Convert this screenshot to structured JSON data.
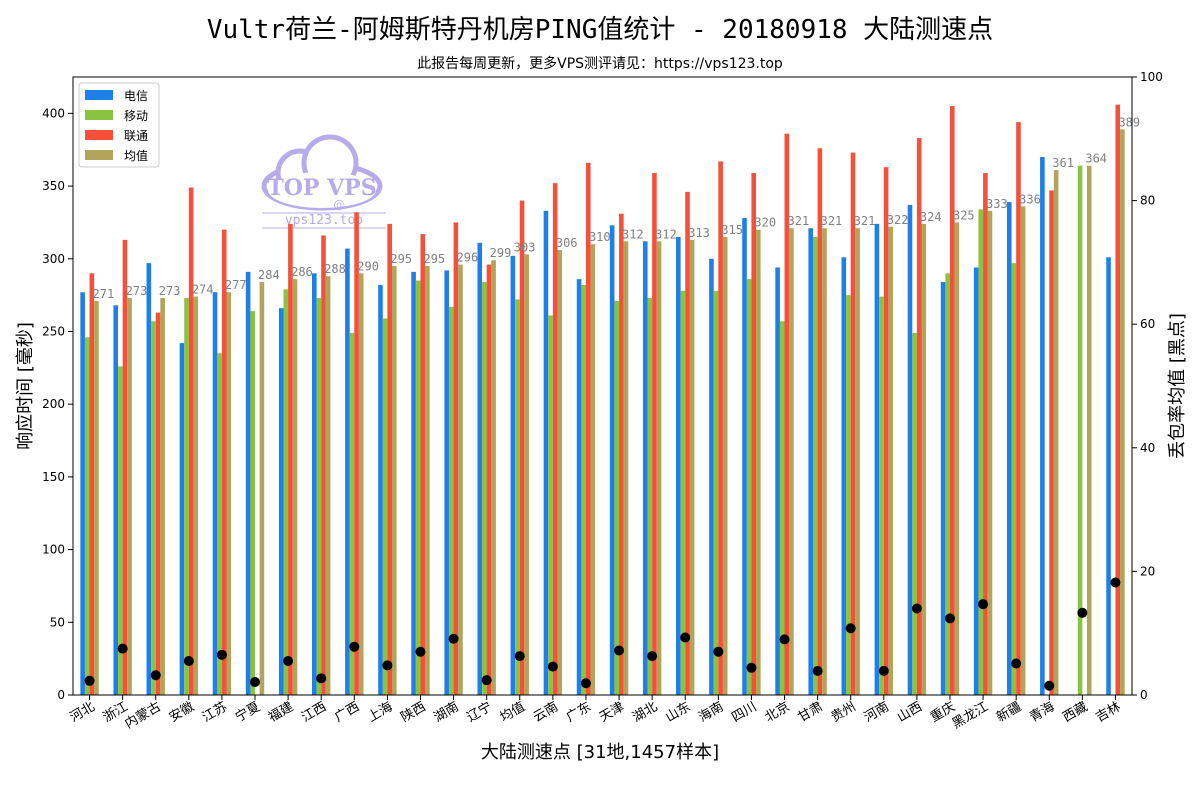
{
  "title": "Vultr荷兰-阿姆斯特丹机房PING值统计 - 20180918 大陆测速点",
  "subtitle": "此报告每周更新，更多VPS测评请见：https://vps123.top",
  "watermark": {
    "brand": "TOP VPS",
    "at": "@",
    "site": "vps123.top"
  },
  "chart_data": {
    "type": "bar",
    "xlabel": "大陆测速点 [31地,1457样本]",
    "ylabel": "响应时间 [毫秒]",
    "y2label": "丢包率均值 [黑点]",
    "ylim": [
      0,
      425
    ],
    "y2lim": [
      0,
      100
    ],
    "yticks": [
      0,
      50,
      100,
      150,
      200,
      250,
      300,
      350,
      400
    ],
    "y2ticks": [
      0,
      20,
      40,
      60,
      80,
      100
    ],
    "legend_position": "top-left",
    "categories": [
      "河北",
      "浙江",
      "内蒙古",
      "安徽",
      "江苏",
      "宁夏",
      "福建",
      "江西",
      "广西",
      "上海",
      "陕西",
      "湖南",
      "辽宁",
      "均值",
      "云南",
      "广东",
      "天津",
      "湖北",
      "山东",
      "海南",
      "四川",
      "北京",
      "甘肃",
      "贵州",
      "河南",
      "山西",
      "重庆",
      "黑龙江",
      "新疆",
      "青海",
      "西藏",
      "吉林"
    ],
    "series": [
      {
        "name": "电信",
        "color": "#1f7fe8",
        "values": [
          277,
          268,
          297,
          242,
          277,
          291,
          266,
          290,
          307,
          282,
          291,
          292,
          311,
          302,
          333,
          286,
          323,
          312,
          315,
          300,
          328,
          294,
          321,
          301,
          324,
          337,
          284,
          294,
          339,
          370,
          null,
          301
        ]
      },
      {
        "name": "移动",
        "color": "#88c440",
        "values": [
          246,
          226,
          257,
          273,
          235,
          264,
          279,
          273,
          249,
          259,
          285,
          267,
          284,
          272,
          261,
          282,
          271,
          273,
          278,
          278,
          286,
          257,
          315,
          275,
          274,
          249,
          290,
          334,
          297,
          null,
          364,
          null
        ]
      },
      {
        "name": "联通",
        "color": "#f5513a",
        "values": [
          290,
          313,
          263,
          349,
          320,
          null,
          324,
          316,
          332,
          324,
          317,
          325,
          296,
          340,
          352,
          366,
          331,
          359,
          346,
          367,
          359,
          386,
          376,
          373,
          363,
          383,
          405,
          359,
          394,
          347,
          null,
          406
        ]
      },
      {
        "name": "均值",
        "color": "#b2a45a",
        "values": [
          271,
          273,
          273,
          274,
          277,
          284,
          286,
          288,
          290,
          295,
          295,
          296,
          299,
          303,
          306,
          310,
          312,
          312,
          313,
          315,
          320,
          321,
          321,
          321,
          322,
          324,
          325,
          333,
          336,
          361,
          364,
          389
        ]
      }
    ],
    "average_labels": [
      "271",
      "273",
      "273",
      "274",
      "277",
      "284",
      "286",
      "288",
      "290",
      "295",
      "295",
      "296",
      "299",
      "303",
      "306",
      "310",
      "312",
      "312",
      "313",
      "315",
      "320",
      "321",
      "321",
      "321",
      "322",
      "324",
      "325",
      "333",
      "336",
      "361",
      "364",
      "389"
    ],
    "packet_loss": [
      2.3,
      7.5,
      3.2,
      5.5,
      6.5,
      2.1,
      5.5,
      2.7,
      7.8,
      4.8,
      7.0,
      9.1,
      2.4,
      6.3,
      4.6,
      1.9,
      7.2,
      6.3,
      9.3,
      7.0,
      4.4,
      9.0,
      3.9,
      10.8,
      3.9,
      14.0,
      12.4,
      14.7,
      5.1,
      1.5,
      13.3,
      18.2
    ]
  }
}
